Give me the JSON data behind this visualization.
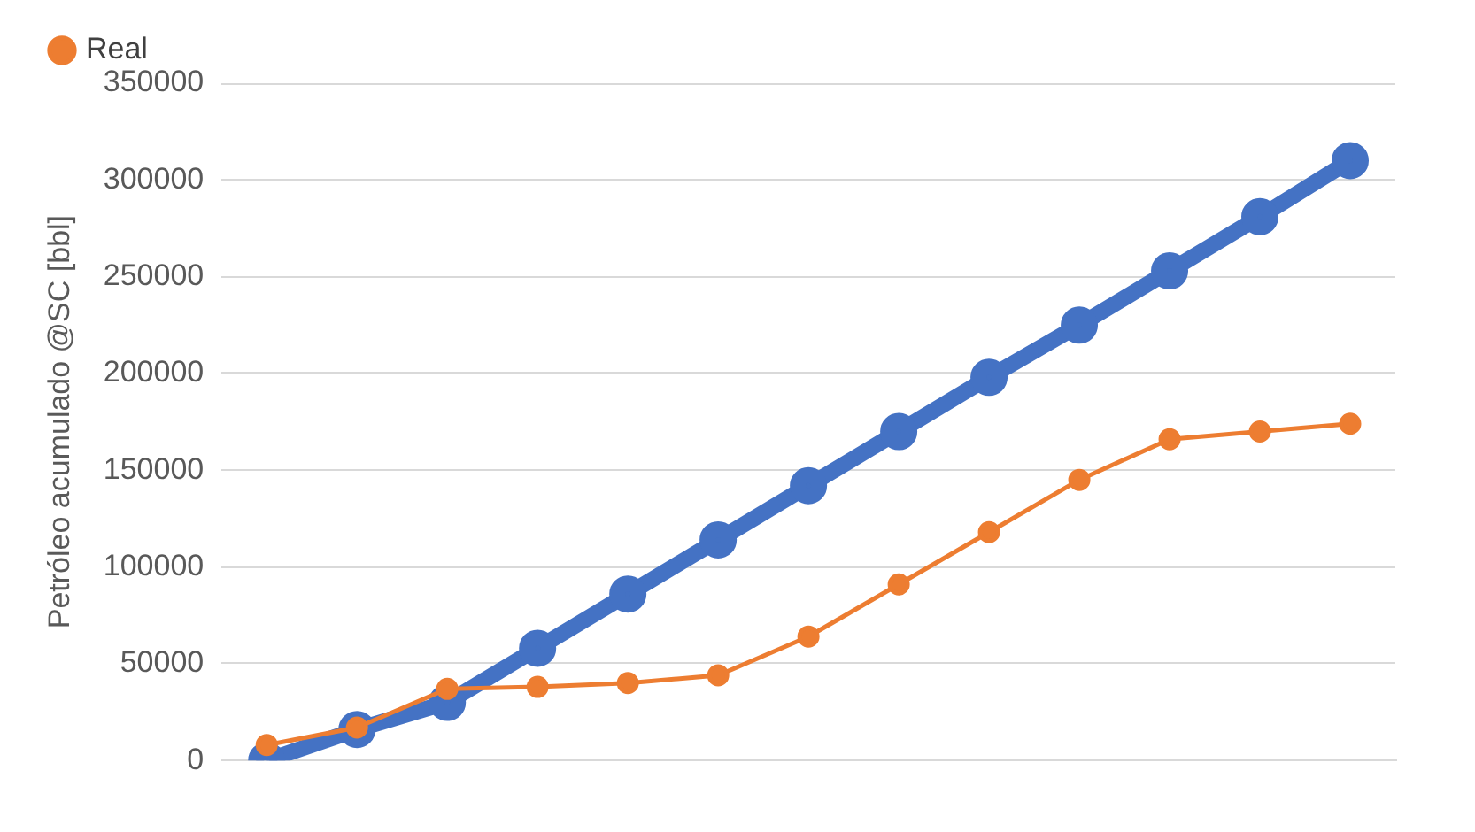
{
  "chart_data": {
    "type": "line",
    "ylabel": "Petróleo acumulado @SC [bbl]",
    "categories": [
      null,
      null,
      null,
      null,
      null,
      null,
      null,
      null,
      null,
      null,
      null,
      null,
      null
    ],
    "ylim": [
      0,
      350000
    ],
    "yticks": [
      0,
      50000,
      100000,
      150000,
      200000,
      250000,
      300000,
      350000
    ],
    "grid": "y",
    "legend": "top left",
    "marker": "circle",
    "series": [
      {
        "color": "#4472c4",
        "values": [
          0,
          16000,
          30000,
          58000,
          86000,
          114000,
          142000,
          170000,
          198000,
          225000,
          253000,
          281000,
          310000
        ]
      },
      {
        "name": "Real",
        "color": "#ed7d31",
        "values": [
          8000,
          17000,
          37000,
          38000,
          40000,
          44000,
          64000,
          91000,
          118000,
          145000,
          166000,
          170000,
          174000
        ]
      }
    ]
  }
}
